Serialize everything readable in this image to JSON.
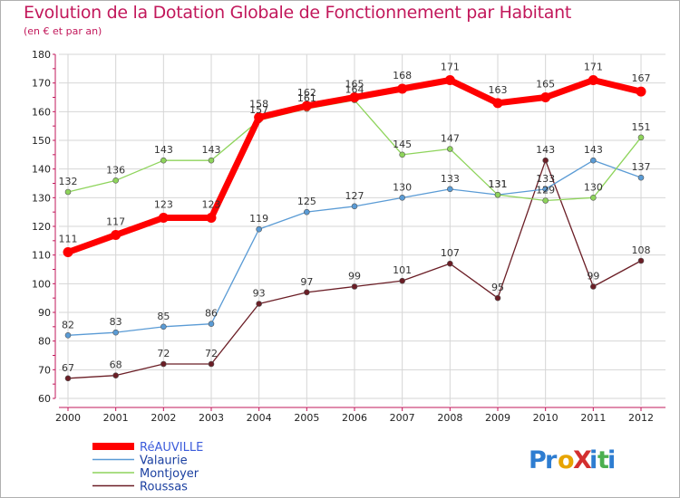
{
  "title": "Evolution de la Dotation Globale de Fonctionnement par Habitant",
  "subtitle": "(en € et par an)",
  "logo": {
    "text": "ProXiti",
    "letters": [
      "P",
      "r",
      "o",
      "X",
      "i",
      "t",
      "i"
    ],
    "colors": [
      "#2e7dd1",
      "#2e7dd1",
      "#e7a400",
      "#d32f2f",
      "#2e7dd1",
      "#4caf50",
      "#2e7dd1"
    ]
  },
  "colors": {
    "title": "#c2185b",
    "axis": "#c2185b",
    "grid": "#d6d6d6"
  },
  "chart_data": {
    "type": "line",
    "title": "Evolution de la Dotation Globale de Fonctionnement par Habitant",
    "subtitle": "(en € et par an)",
    "x": [
      "2000",
      "2001",
      "2002",
      "2003",
      "2004",
      "2005",
      "2006",
      "2007",
      "2008",
      "2009",
      "2010",
      "2011",
      "2012"
    ],
    "ylim": [
      60,
      180
    ],
    "yticks": [
      60,
      70,
      80,
      90,
      100,
      110,
      120,
      130,
      140,
      150,
      160,
      170,
      180
    ],
    "grid": true,
    "legend_position": "bottom-left",
    "series": [
      {
        "name": "Roussas",
        "color": "#6b1e26",
        "values": [
          67,
          68,
          72,
          72,
          93,
          97,
          99,
          101,
          107,
          95,
          143,
          99,
          108
        ]
      },
      {
        "name": "Valaurie",
        "color": "#5a9bd5",
        "values": [
          82,
          83,
          85,
          86,
          119,
          125,
          127,
          130,
          133,
          131,
          133,
          143,
          137
        ]
      },
      {
        "name": "Montjoyer",
        "color": "#8ed45b",
        "values": [
          132,
          136,
          143,
          143,
          157,
          161,
          164,
          145,
          147,
          131,
          129,
          130,
          151
        ]
      },
      {
        "name": "RéAUVILLE",
        "color": "#ff0000",
        "values": [
          111,
          117,
          123,
          123,
          158,
          162,
          165,
          168,
          171,
          163,
          165,
          171,
          167
        ]
      }
    ]
  }
}
